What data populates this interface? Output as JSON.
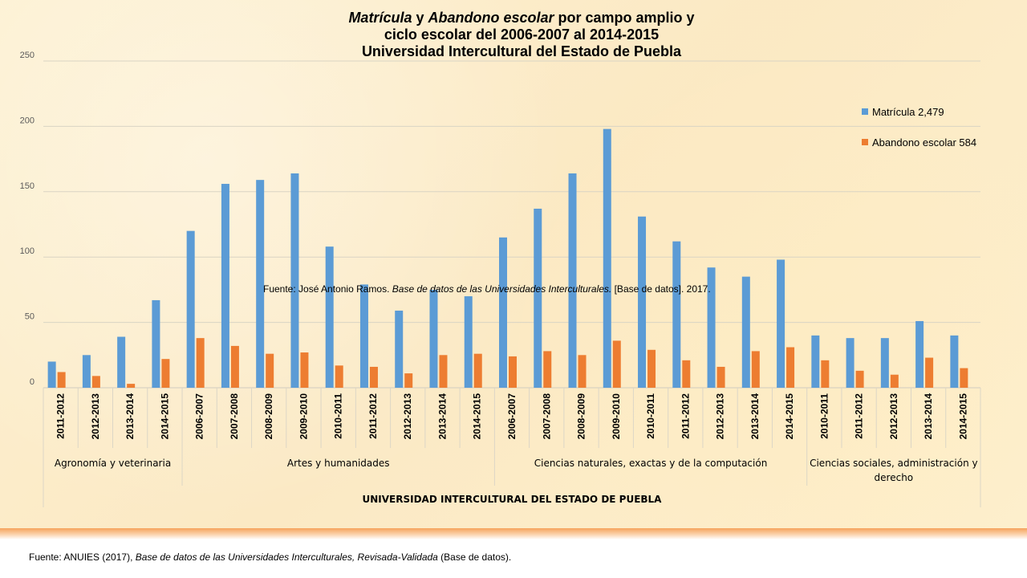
{
  "title": {
    "line1_italic_a": "Matrícula",
    "line1_mid": " y ",
    "line1_italic_b": "Abandono escolar",
    "line1_tail": " por campo amplio  y",
    "line2": "ciclo escolar del 2006-2007 al 2014-2015",
    "line3": "Universidad Intercultural del Estado de Puebla"
  },
  "overlay_note": {
    "prefix": "Fuente: José  Antonio  Ramos. ",
    "italic": "Base de datos de las Universidades  Interculturales.",
    "suffix": " [Base de datos]. 2017."
  },
  "source_note": {
    "prefix": "Fuente: ANUIES (2017),  ",
    "italic": "Base de datos de las Universidades  Interculturales, Revisada-Validada",
    "suffix": "  (Base de datos)."
  },
  "chart_data": {
    "type": "bar",
    "ylim": [
      0,
      250
    ],
    "yticks": [
      0,
      50,
      100,
      150,
      200,
      250
    ],
    "grid": true,
    "legend_position": "right",
    "outer_group_label": "UNIVERSIDAD INTERCULTURAL DEL ESTADO DE PUEBLA",
    "groups": [
      {
        "label": "Agronomía y veterinaria",
        "count": 4
      },
      {
        "label": "Artes y humanidades",
        "count": 9
      },
      {
        "label": "Ciencias naturales, exactas y de la computación",
        "count": 9
      },
      {
        "label_lines": [
          "Ciencias sociales, administración y",
          "derecho"
        ],
        "count": 5
      }
    ],
    "categories": [
      "2011-2012",
      "2012-2013",
      "2013-2014",
      "2014-2015",
      "2006-2007",
      "2007-2008",
      "2008-2009",
      "2009-2010",
      "2010-2011",
      "2011-2012",
      "2012-2013",
      "2013-2014",
      "2014-2015",
      "2006-2007",
      "2007-2008",
      "2008-2009",
      "2009-2010",
      "2010-2011",
      "2011-2012",
      "2012-2013",
      "2013-2014",
      "2014-2015",
      "2010-2011",
      "2011-2012",
      "2012-2013",
      "2013-2014",
      "2014-2015"
    ],
    "series": [
      {
        "name": "Matrícula   2,479",
        "color": "#5b9bd5",
        "values": [
          20,
          25,
          39,
          67,
          120,
          156,
          159,
          164,
          108,
          79,
          59,
          75,
          70,
          115,
          137,
          164,
          198,
          131,
          112,
          92,
          85,
          98,
          40,
          38,
          38,
          51,
          40
        ]
      },
      {
        "name": "Abandono escolar  584",
        "color": "#ed7d31",
        "values": [
          12,
          9,
          3,
          22,
          38,
          32,
          26,
          27,
          17,
          16,
          11,
          25,
          26,
          24,
          28,
          25,
          36,
          29,
          21,
          16,
          28,
          31,
          21,
          13,
          10,
          23,
          15
        ]
      }
    ]
  }
}
